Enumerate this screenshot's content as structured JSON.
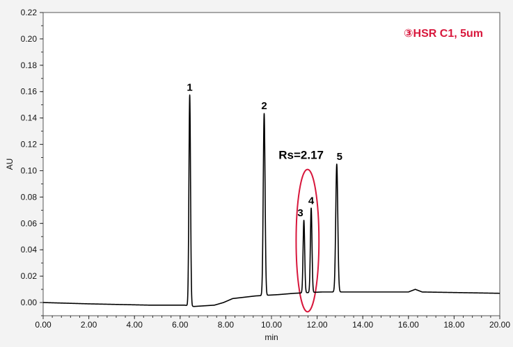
{
  "chart_data": {
    "type": "line",
    "xlabel": "min",
    "ylabel": "AU",
    "xlim": [
      0,
      20
    ],
    "ylim": [
      -0.01,
      0.22
    ],
    "x_ticks": [
      "0.00",
      "2.00",
      "4.00",
      "6.00",
      "8.00",
      "10.00",
      "12.00",
      "14.00",
      "16.00",
      "18.00",
      "20.00"
    ],
    "y_ticks": [
      "0.00",
      "0.02",
      "0.04",
      "0.06",
      "0.08",
      "0.10",
      "0.12",
      "0.14",
      "0.16",
      "0.18",
      "0.20",
      "0.22"
    ],
    "grid": false,
    "legend": "top-right",
    "legend_text": "③HSR C1, 5um",
    "series": [
      {
        "color": "#000000",
        "baseline": [
          [
            0.0,
            0.0
          ],
          [
            2.0,
            -0.001
          ],
          [
            4.7,
            -0.002
          ],
          [
            6.2,
            -0.002
          ],
          [
            6.6,
            -0.003
          ],
          [
            7.5,
            -0.002
          ],
          [
            7.9,
            0.0
          ],
          [
            8.3,
            0.003
          ],
          [
            9.3,
            0.005
          ],
          [
            10.3,
            0.006
          ],
          [
            11.0,
            0.007
          ],
          [
            12.2,
            0.008
          ],
          [
            13.5,
            0.008
          ],
          [
            16.0,
            0.008
          ],
          [
            16.3,
            0.01
          ],
          [
            16.6,
            0.008
          ],
          [
            20.0,
            0.007
          ]
        ],
        "peaks": [
          {
            "label": "1",
            "rt": 6.42,
            "height": 0.16,
            "width": 0.035
          },
          {
            "label": "2",
            "rt": 9.68,
            "height": 0.138,
            "width": 0.04
          },
          {
            "label": "3",
            "rt": 11.42,
            "height": 0.055,
            "width": 0.035
          },
          {
            "label": "4",
            "rt": 11.74,
            "height": 0.064,
            "width": 0.035
          },
          {
            "label": "5",
            "rt": 12.86,
            "height": 0.097,
            "width": 0.045
          }
        ]
      }
    ],
    "annotations": [
      {
        "text": "Rs=2.17",
        "x": 11.3,
        "y": 0.109
      }
    ],
    "highlight_ellipse": {
      "cx": 11.58,
      "cy": 0.047,
      "rx": 1.15,
      "ry": 0.054,
      "color": "#d8173c"
    },
    "accent_color": "#d8173c"
  }
}
